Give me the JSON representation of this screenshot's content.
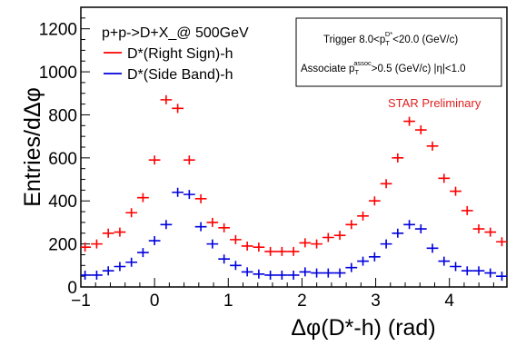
{
  "chart_data": {
    "type": "scatter",
    "legend_header": "p+p->D+X_@ 500GeV",
    "xlabel": "Δφ(D*-h) (rad)",
    "ylabel": "Entries/dΔφ",
    "xlim": [
      -1,
      4.78
    ],
    "ylim": [
      0,
      1300
    ],
    "x_ticks": [
      -1,
      0,
      1,
      2,
      3,
      4
    ],
    "y_ticks": [
      0,
      200,
      400,
      600,
      800,
      1000,
      1200
    ],
    "grid": false,
    "legend_position": "top-left",
    "info_box": {
      "trigger_prefix": "Trigger 8.0<p",
      "trigger_sub": "T",
      "trigger_sup": "D*",
      "trigger_suffix": "<20.0 (GeV/c)",
      "assoc_prefix": "Associate p",
      "assoc_sub": "T",
      "assoc_sup": "assoc",
      "assoc_suffix": ">0.5 (GeV/c)  |η|<1.0"
    },
    "annotation": "STAR Preliminary",
    "bin_halfwidth": 0.0785,
    "x": [
      -0.943,
      -0.785,
      -0.628,
      -0.471,
      -0.314,
      -0.157,
      0.0,
      0.157,
      0.314,
      0.471,
      0.628,
      0.785,
      0.943,
      1.1,
      1.257,
      1.414,
      1.571,
      1.728,
      1.885,
      2.042,
      2.199,
      2.356,
      2.513,
      2.67,
      2.827,
      2.985,
      3.142,
      3.299,
      3.456,
      3.613,
      3.77,
      3.927,
      4.084,
      4.241,
      4.398,
      4.555,
      4.712
    ],
    "series": [
      {
        "name": "D*(Right Sign)-h",
        "color": "#ff0000",
        "values": [
          185,
          200,
          250,
          255,
          345,
          415,
          590,
          870,
          830,
          590,
          410,
          300,
          275,
          220,
          190,
          185,
          165,
          165,
          165,
          205,
          200,
          230,
          240,
          290,
          330,
          400,
          480,
          600,
          770,
          730,
          655,
          505,
          445,
          355,
          270,
          255,
          210
        ]
      },
      {
        "name": "D*(Side Band)-h",
        "color": "#0000dd",
        "values": [
          55,
          55,
          75,
          95,
          115,
          160,
          215,
          290,
          440,
          430,
          280,
          200,
          130,
          100,
          70,
          60,
          55,
          55,
          55,
          70,
          65,
          65,
          65,
          90,
          120,
          140,
          200,
          250,
          290,
          270,
          180,
          120,
          95,
          75,
          75,
          65,
          50
        ]
      }
    ]
  }
}
